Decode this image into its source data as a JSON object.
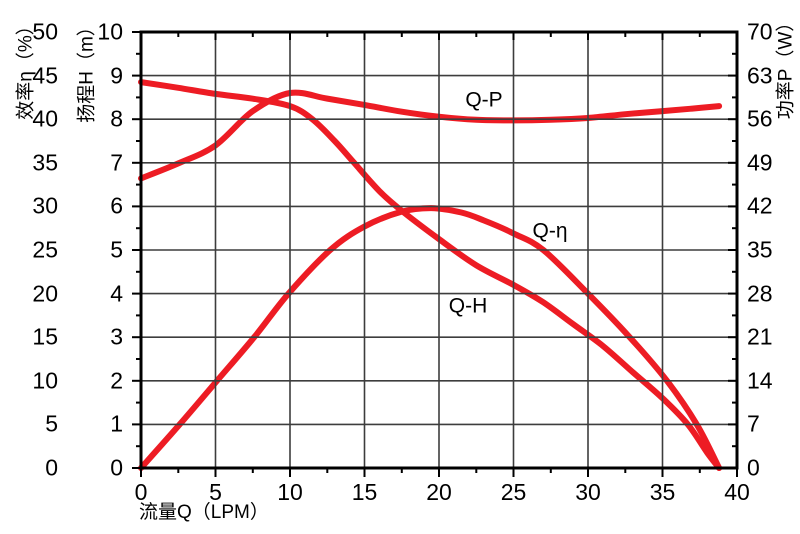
{
  "chart_data": {
    "type": "line",
    "title": "",
    "grid": true,
    "legend_position": "labels-on-chart",
    "colors": {
      "curve": "#ED1C24",
      "grid": "#3D3D3D",
      "axis": "#000000",
      "background": "#FFFFFF"
    },
    "x_axis": {
      "label": "流量Q（LPM）",
      "min": 0,
      "max": 40,
      "major_ticks": [
        0,
        5,
        10,
        15,
        20,
        25,
        30,
        35,
        40
      ],
      "minor_tick_step": 2.5
    },
    "y_axes": [
      {
        "name": "efficiency",
        "label": "效率η（%）",
        "side": "left-outer",
        "min": 0,
        "max": 50,
        "major_ticks": [
          50,
          45,
          40,
          35,
          30,
          25,
          20,
          15,
          10,
          5,
          0
        ],
        "minor_tick_step": 2.5
      },
      {
        "name": "head",
        "label": "扬程H（m）",
        "side": "left",
        "min": 0,
        "max": 10,
        "major_ticks": [
          10,
          9,
          8,
          7,
          6,
          5,
          4,
          3,
          2,
          1,
          0
        ],
        "minor_tick_step": 0.5
      },
      {
        "name": "power",
        "label": "功率P（W）",
        "side": "right",
        "min": 0,
        "max": 70,
        "major_ticks": [
          70,
          63,
          56,
          49,
          42,
          35,
          28,
          21,
          14,
          7,
          0
        ],
        "minor_tick_step": 3.5
      }
    ],
    "series": [
      {
        "name": "Q-H",
        "axis": "head",
        "units": "m vs LPM",
        "points": [
          [
            0,
            8.85
          ],
          [
            2.5,
            8.72
          ],
          [
            5,
            8.58
          ],
          [
            7.5,
            8.47
          ],
          [
            10,
            8.3
          ],
          [
            11.5,
            8.0
          ],
          [
            13,
            7.5
          ],
          [
            14.3,
            7.0
          ],
          [
            16,
            6.35
          ],
          [
            17.5,
            5.9
          ],
          [
            20,
            5.25
          ],
          [
            22.5,
            4.65
          ],
          [
            25,
            4.2
          ],
          [
            27,
            3.8
          ],
          [
            29,
            3.3
          ],
          [
            31,
            2.8
          ],
          [
            33,
            2.2
          ],
          [
            35,
            1.6
          ],
          [
            36.7,
            1.0
          ],
          [
            38,
            0.35
          ],
          [
            38.8,
            0
          ]
        ]
      },
      {
        "name": "Q-η",
        "axis": "efficiency",
        "units": "% vs LPM",
        "points": [
          [
            0,
            0
          ],
          [
            2.6,
            5
          ],
          [
            5.1,
            10
          ],
          [
            7.6,
            15
          ],
          [
            9.9,
            20
          ],
          [
            12.7,
            25
          ],
          [
            15,
            27.7
          ],
          [
            17.5,
            29.4
          ],
          [
            19.5,
            29.8
          ],
          [
            21.5,
            29.3
          ],
          [
            23,
            28.4
          ],
          [
            25,
            26.9
          ],
          [
            27,
            25
          ],
          [
            30,
            20
          ],
          [
            32.8,
            15
          ],
          [
            35.3,
            10
          ],
          [
            37.3,
            5
          ],
          [
            38.8,
            0
          ]
        ]
      },
      {
        "name": "Q-P",
        "axis": "power",
        "units": "W vs LPM",
        "points": [
          [
            0,
            46.5
          ],
          [
            2.5,
            48.9
          ],
          [
            5,
            51.8
          ],
          [
            7.5,
            57.3
          ],
          [
            10,
            60.2
          ],
          [
            12.5,
            59.3
          ],
          [
            15,
            58.3
          ],
          [
            17.5,
            57.2
          ],
          [
            20,
            56.4
          ],
          [
            22.5,
            55.9
          ],
          [
            25,
            55.8
          ],
          [
            27.5,
            55.9
          ],
          [
            30,
            56.2
          ],
          [
            32.5,
            56.8
          ],
          [
            35,
            57.3
          ],
          [
            37,
            57.7
          ],
          [
            38.8,
            58.1
          ]
        ]
      }
    ],
    "curve_labels": [
      {
        "text": "Q-P",
        "series": "Q-P"
      },
      {
        "text": "Q-η",
        "series": "Q-η"
      },
      {
        "text": "Q-H",
        "series": "Q-H"
      }
    ]
  }
}
